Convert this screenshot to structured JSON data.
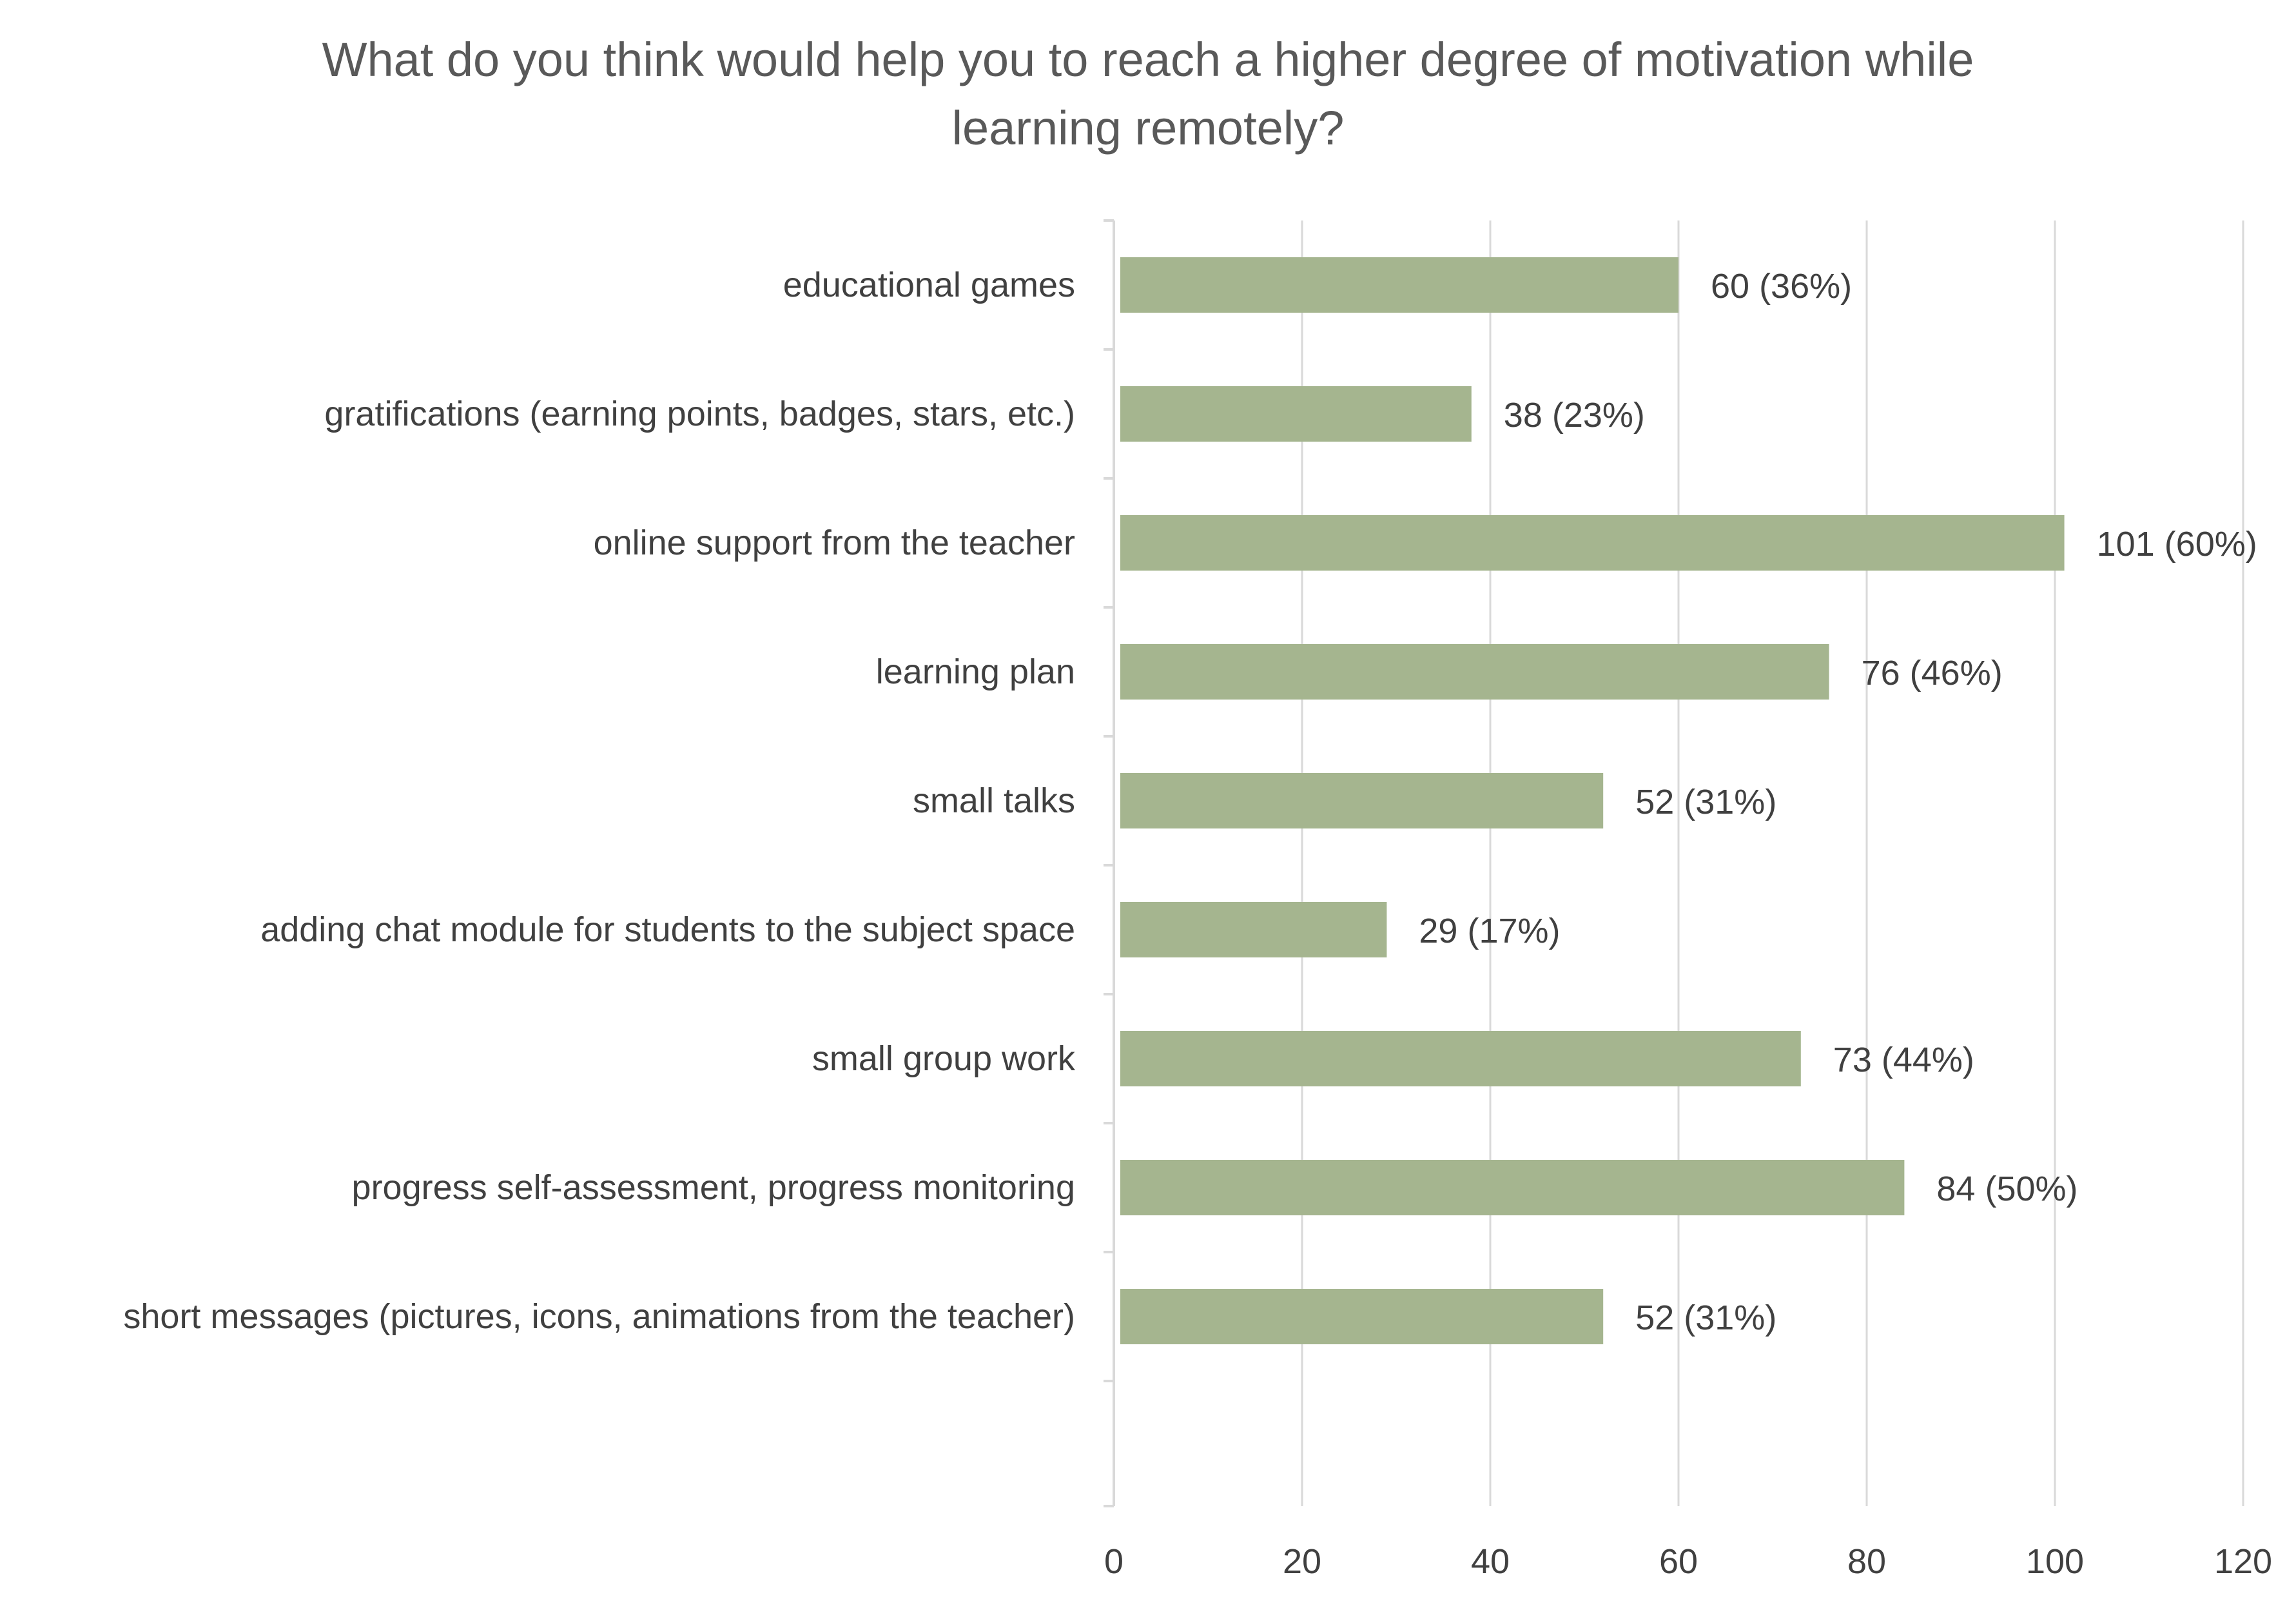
{
  "chart_data": {
    "type": "bar",
    "orientation": "horizontal",
    "title": "What do you think would help you to reach a higher degree of motivation while learning remotely?",
    "title_lines": [
      "What do you think would help you to reach a higher degree of motivation while",
      "learning remotely?"
    ],
    "xlabel": "",
    "ylabel": "",
    "categories": [
      "educational games",
      "gratifications (earning points, badges, stars, etc.)",
      "online support from the teacher",
      "learning plan",
      "small talks",
      "adding chat module for students to the subject space",
      "small group work",
      "progress self-assessment, progress monitoring",
      "short messages (pictures, icons, animations from the teacher)"
    ],
    "values": [
      60,
      38,
      101,
      76,
      52,
      29,
      73,
      84,
      52
    ],
    "data_labels": [
      "60 (36%)",
      "38 (23%)",
      "101 (60%)",
      "76 (46%)",
      "52 (31%)",
      "29 (17%)",
      "73 (44%)",
      "84 (50%)",
      "52 (31%)"
    ],
    "xlim": [
      0,
      120
    ],
    "x_ticks": [
      0,
      20,
      40,
      60,
      80,
      100,
      120
    ],
    "x_tick_labels": [
      "0",
      "20",
      "40",
      "60",
      "80",
      "100",
      "120"
    ],
    "grid": true,
    "legend": "none",
    "bar_color": "#a5b58f",
    "grid_color": "#d9d9d9",
    "text_color": "#404040",
    "title_color": "#595959"
  }
}
